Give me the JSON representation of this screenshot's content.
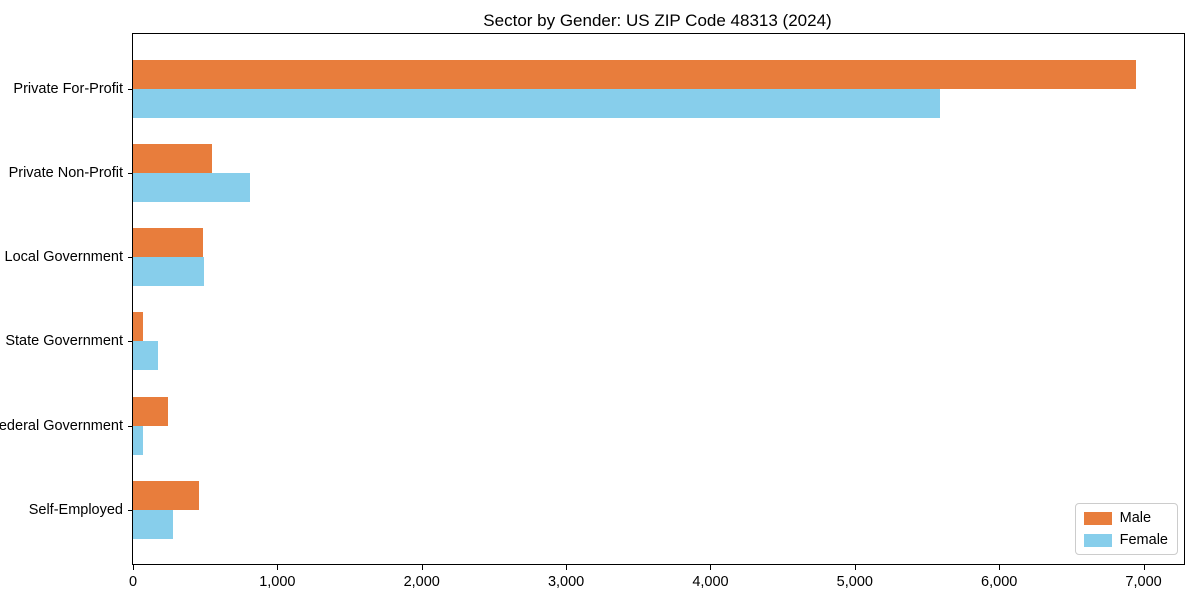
{
  "chart_data": {
    "type": "bar",
    "orientation": "horizontal",
    "title": "Sector by Gender: US ZIP Code 48313 (2024)",
    "categories": [
      "Private For-Profit",
      "Private Non-Profit",
      "Local Government",
      "State Government",
      "Federal Government",
      "Self-Employed"
    ],
    "series": [
      {
        "name": "Male",
        "color": "#e87d3c",
        "values": [
          6950,
          545,
          485,
          70,
          240,
          460
        ]
      },
      {
        "name": "Female",
        "color": "#87ceeb",
        "values": [
          5590,
          810,
          490,
          175,
          70,
          280
        ]
      }
    ],
    "xlabel": "",
    "ylabel": "",
    "xlim": [
      0,
      7280
    ],
    "x_ticks": [
      0,
      1000,
      2000,
      3000,
      4000,
      5000,
      6000,
      7000
    ],
    "x_tick_labels": [
      "0",
      "1,000",
      "2,000",
      "3,000",
      "4,000",
      "5,000",
      "6,000",
      "7,000"
    ],
    "grid": false,
    "legend_position": "lower right"
  }
}
